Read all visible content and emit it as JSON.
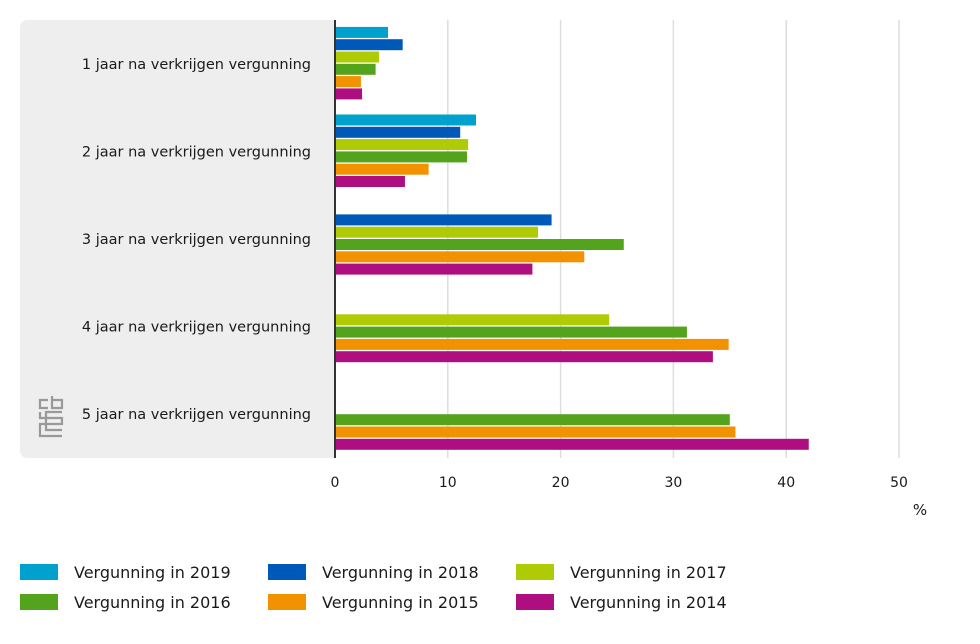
{
  "chart_data": {
    "type": "bar",
    "orientation": "horizontal",
    "title": "",
    "xlabel": "%",
    "ylabel": "",
    "xlim": [
      0,
      50
    ],
    "xticks": [
      0,
      10,
      20,
      30,
      40,
      50
    ],
    "grid": true,
    "legend_position": "bottom",
    "categories": [
      "1 jaar na verkrijgen vergunning",
      "2 jaar na verkrijgen vergunning",
      "3 jaar na verkrijgen vergunning",
      "4 jaar na verkrijgen vergunning",
      "5 jaar na verkrijgen vergunning"
    ],
    "series": [
      {
        "name": "Vergunning in 2019",
        "color": "#00a1cd",
        "values": [
          4.7,
          12.5,
          null,
          null,
          null
        ]
      },
      {
        "name": "Vergunning in 2018",
        "color": "#0058b8",
        "values": [
          6.0,
          11.1,
          19.2,
          null,
          null
        ]
      },
      {
        "name": "Vergunning in 2017",
        "color": "#afcb05",
        "values": [
          3.9,
          11.8,
          18.0,
          24.3,
          null
        ]
      },
      {
        "name": "Vergunning in 2016",
        "color": "#53a31d",
        "values": [
          3.6,
          11.7,
          25.6,
          31.2,
          35.0
        ]
      },
      {
        "name": "Vergunning in 2015",
        "color": "#f39200",
        "values": [
          2.3,
          8.3,
          22.1,
          34.9,
          35.5
        ]
      },
      {
        "name": "Vergunning in 2014",
        "color": "#af0e80",
        "values": [
          2.4,
          6.2,
          17.5,
          33.5,
          42.0
        ]
      }
    ]
  },
  "logo": {
    "text": "cbs",
    "icon": "cbs-logo-icon"
  }
}
